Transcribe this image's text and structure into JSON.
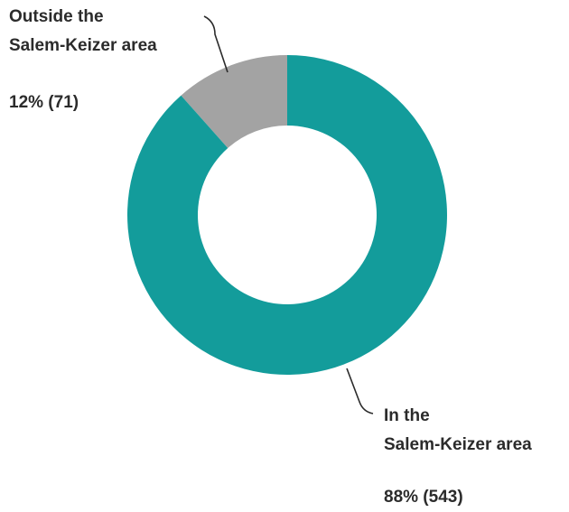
{
  "chart_data": {
    "type": "pie",
    "style": "donut",
    "slices": [
      {
        "key": "outside",
        "label_line1": "Outside the",
        "label_line2": "Salem-Keizer area",
        "value_text": "12% (71)",
        "percent": 12,
        "count": 71,
        "color": "#a3a3a3"
      },
      {
        "key": "inside",
        "label_line1": "In the",
        "label_line2": "Salem-Keizer area",
        "value_text": "88% (543)",
        "percent": 88,
        "count": 543,
        "color": "#139c9b"
      }
    ]
  }
}
